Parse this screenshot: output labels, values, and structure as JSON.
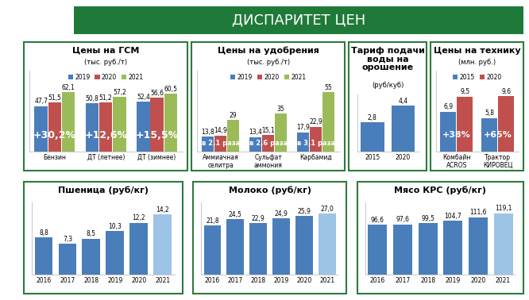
{
  "header": {
    "title": "ДИСПАРИТЕТ ЦЕН"
  },
  "chart_data": [
    {
      "type": "bar",
      "title": "Цены на ГСМ",
      "subtitle": "(тыс. руб./т)",
      "categories": [
        "Бензин",
        "ДТ (летнее)",
        "ДТ (зимнее)"
      ],
      "series": [
        {
          "name": "2019",
          "color": "#4A7EBB",
          "values": [
            47.7,
            50.8,
            52.4
          ],
          "value_labels": [
            "47,7",
            "50,8",
            "52,4"
          ]
        },
        {
          "name": "2020",
          "color": "#C0504D",
          "values": [
            51.5,
            51.2,
            56.6
          ],
          "value_labels": [
            "51,5",
            "51,2",
            "56,6"
          ]
        },
        {
          "name": "2021",
          "color": "#9BBB59",
          "values": [
            62.1,
            57.2,
            60.5
          ],
          "value_labels": [
            "62,1",
            "57,2",
            "60,5"
          ]
        }
      ],
      "annotations": [
        "+30,2%",
        "+12,6%",
        "+15,5%"
      ],
      "ylim": [
        0,
        85
      ],
      "yticks": [],
      "tick_labels": "x",
      "legend": "upper center",
      "data_labels": true
    },
    {
      "type": "bar",
      "title": "Цены на удобрения",
      "subtitle": "(тыс. руб./т)",
      "categories": [
        "Аммиачная селитра",
        "Сульфат аммония",
        "Карбамид"
      ],
      "series": [
        {
          "name": "2019",
          "color": "#4A7EBB",
          "values": [
            13.8,
            13.4,
            17.9
          ],
          "value_labels": [
            "13,8",
            "13,4",
            "17,9"
          ]
        },
        {
          "name": "2020",
          "color": "#C0504D",
          "values": [
            14.9,
            15.1,
            22.9
          ],
          "value_labels": [
            "14,9",
            "15,1",
            "22,9"
          ]
        },
        {
          "name": "2021",
          "color": "#9BBB59",
          "values": [
            29,
            35,
            55
          ],
          "value_labels": [
            "29",
            "35",
            "55"
          ]
        }
      ],
      "annotations": [
        "в 2,1 раза",
        "в 2,6 раза",
        "в 3,1 раза"
      ],
      "ylim": [
        0,
        75
      ],
      "yticks": [],
      "tick_labels": "x",
      "legend": "upper center",
      "data_labels": true
    },
    {
      "type": "bar",
      "title": "Тариф подачи воды на орошение",
      "subtitle": "(руб/куб)",
      "categories": [
        "2015",
        "2020"
      ],
      "values": [
        2.8,
        4.4
      ],
      "value_labels": [
        "2,8",
        "4,4"
      ],
      "color": "#4A7EBB",
      "ylim": [
        0,
        5.5
      ],
      "yticks": [],
      "tick_labels": "x",
      "data_labels": true
    },
    {
      "type": "bar",
      "title": "Цены на технику",
      "subtitle": "(млн. руб.)",
      "categories": [
        "Комбайн ACROS",
        "Трактор КИРОВЕЦ"
      ],
      "series": [
        {
          "name": "2015",
          "color": "#4A7EBB",
          "values": [
            6.9,
            5.8
          ],
          "value_labels": [
            "6,9",
            "5,8"
          ]
        },
        {
          "name": "2020",
          "color": "#C0504D",
          "values": [
            9.5,
            9.6
          ],
          "value_labels": [
            "9,5",
            "9,6"
          ]
        }
      ],
      "annotations": [
        "+38%",
        "+65%"
      ],
      "ylim": [
        0,
        14
      ],
      "yticks": [],
      "tick_labels": "x",
      "legend": "upper center",
      "data_labels": true
    },
    {
      "type": "bar",
      "title": "Пшеница (руб/кг)",
      "categories": [
        "2016",
        "2017",
        "2018",
        "2019",
        "2020",
        "2021"
      ],
      "values": [
        8.8,
        7.3,
        8.5,
        10.3,
        12.2,
        14.2
      ],
      "value_labels": [
        "8,8",
        "7,3",
        "8,5",
        "10,3",
        "12,2",
        "14,2"
      ],
      "colors": [
        "#4A7EBB",
        "#4A7EBB",
        "#4A7EBB",
        "#4A7EBB",
        "#4A7EBB",
        "#9DC3E6"
      ],
      "ylim": [
        0,
        17
      ],
      "yticks": [],
      "tick_labels": "x",
      "data_labels": true
    },
    {
      "type": "bar",
      "title": "Молоко (руб/кг)",
      "categories": [
        "2016",
        "2017",
        "2018",
        "2019",
        "2020",
        "2021"
      ],
      "values": [
        21.8,
        24.5,
        22.9,
        24.9,
        25.9,
        27.0
      ],
      "value_labels": [
        "21,8",
        "24,5",
        "22,9",
        "24,9",
        "25,9",
        "27,0"
      ],
      "colors": [
        "#4A7EBB",
        "#4A7EBB",
        "#4A7EBB",
        "#4A7EBB",
        "#4A7EBB",
        "#9DC3E6"
      ],
      "ylim": [
        0,
        32
      ],
      "yticks": [],
      "tick_labels": "x",
      "data_labels": true
    },
    {
      "type": "bar",
      "title": "Мясо КРС (руб/кг)",
      "categories": [
        "2016",
        "2017",
        "2018",
        "2019",
        "2020",
        "2021"
      ],
      "values": [
        96.6,
        97.6,
        99.5,
        104.7,
        111.6,
        119.1
      ],
      "value_labels": [
        "96,6",
        "97,6",
        "99,5",
        "104,7",
        "111,6",
        "119,1"
      ],
      "colors": [
        "#4A7EBB",
        "#4A7EBB",
        "#4A7EBB",
        "#4A7EBB",
        "#4A7EBB",
        "#9DC3E6"
      ],
      "ylim": [
        0,
        140
      ],
      "yticks": [],
      "tick_labels": "x",
      "data_labels": true
    }
  ]
}
